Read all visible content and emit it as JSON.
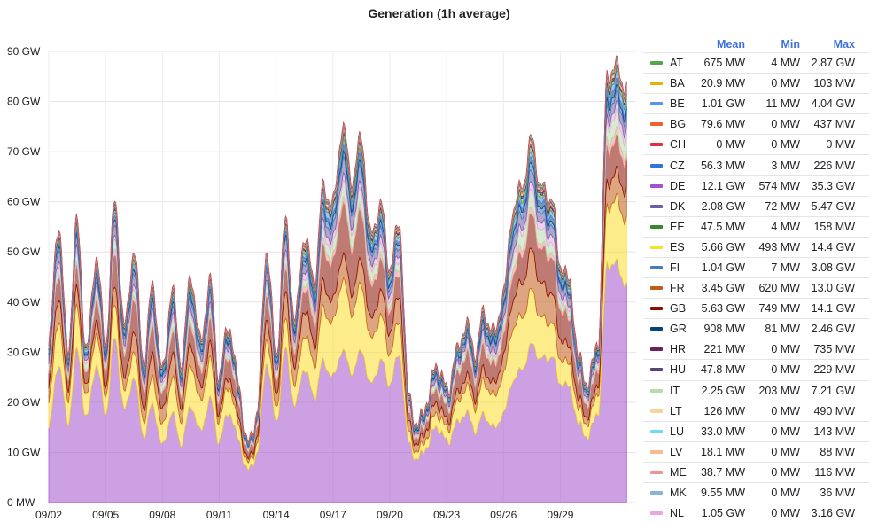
{
  "chart_data": {
    "type": "area",
    "title": "Generation (1h average)",
    "xlabel": "",
    "ylabel": "",
    "ylim": [
      0,
      90
    ],
    "y_unit": "GW",
    "yticks": [
      "0 MW",
      "10 GW",
      "20 GW",
      "30 GW",
      "40 GW",
      "50 GW",
      "60 GW",
      "70 GW",
      "80 GW",
      "90 GW"
    ],
    "xticks": [
      "09/02",
      "09/05",
      "09/08",
      "09/11",
      "09/14",
      "09/17",
      "09/20",
      "09/23",
      "09/26",
      "09/29"
    ],
    "grid": true,
    "stacked": true,
    "legend_placement": "right",
    "x_days": [
      0,
      0.5,
      1,
      1.5,
      2,
      2.5,
      3,
      3.5,
      4,
      4.5,
      5,
      5.5,
      6,
      6.5,
      7,
      7.5,
      8,
      8.5,
      9,
      9.5,
      10,
      10.5,
      11,
      11.5,
      12,
      12.5,
      13,
      13.5,
      14,
      14.5,
      15,
      15.5,
      16,
      16.5,
      17,
      17.5,
      18,
      18.5,
      19,
      19.5,
      20,
      20.5,
      21,
      21.5,
      22,
      22.5,
      23,
      23.5,
      24,
      24.5,
      25,
      25.5,
      26,
      26.5,
      27,
      27.5,
      28,
      28.5,
      29,
      29.5,
      30,
      30.5
    ],
    "total_gw": [
      30,
      52,
      28,
      50,
      27,
      45,
      30,
      57,
      34,
      51,
      30,
      47,
      29,
      48,
      32,
      50,
      34,
      45,
      25,
      34,
      22,
      10,
      16,
      46,
      27,
      53,
      36,
      55,
      47,
      68,
      65,
      82,
      70,
      78,
      56,
      62,
      48,
      55,
      20,
      14,
      19,
      25,
      20,
      27,
      34,
      30,
      39,
      36,
      46,
      66,
      72,
      81,
      68,
      64,
      48,
      42,
      26,
      22,
      30,
      78,
      79,
      76
    ],
    "legend_columns": [
      "Mean",
      "Min",
      "Max"
    ],
    "series": [
      {
        "name": "AT",
        "color": "#56a64b",
        "mean": "675 MW",
        "min": "4 MW",
        "max": "2.87 GW"
      },
      {
        "name": "BA",
        "color": "#e0b400",
        "mean": "20.9 MW",
        "min": "0 MW",
        "max": "103 MW"
      },
      {
        "name": "BE",
        "color": "#5794f2",
        "mean": "1.01 GW",
        "min": "11 MW",
        "max": "4.04 GW"
      },
      {
        "name": "BG",
        "color": "#f2612d",
        "mean": "79.6 MW",
        "min": "0 MW",
        "max": "437 MW"
      },
      {
        "name": "CH",
        "color": "#e02f44",
        "mean": "0 MW",
        "min": "0 MW",
        "max": "0 MW"
      },
      {
        "name": "CZ",
        "color": "#3274d9",
        "mean": "56.3 MW",
        "min": "3 MW",
        "max": "226 MW"
      },
      {
        "name": "DE",
        "color": "#a352cc",
        "mean": "12.1 GW",
        "min": "574 MW",
        "max": "35.3 GW"
      },
      {
        "name": "DK",
        "color": "#705da0",
        "mean": "2.08 GW",
        "min": "72 MW",
        "max": "5.47 GW"
      },
      {
        "name": "EE",
        "color": "#37872d",
        "mean": "47.5 MW",
        "min": "4 MW",
        "max": "158 MW"
      },
      {
        "name": "ES",
        "color": "#fade2a",
        "mean": "5.66 GW",
        "min": "493 MW",
        "max": "14.4 GW"
      },
      {
        "name": "FI",
        "color": "#447ebc",
        "mean": "1.04 GW",
        "min": "7 MW",
        "max": "3.08 GW"
      },
      {
        "name": "FR",
        "color": "#c15c17",
        "mean": "3.45 GW",
        "min": "620 MW",
        "max": "13.0 GW"
      },
      {
        "name": "GB",
        "color": "#890f02",
        "mean": "5.63 GW",
        "min": "749 MW",
        "max": "14.1 GW"
      },
      {
        "name": "GR",
        "color": "#0a437c",
        "mean": "908 MW",
        "min": "81 MW",
        "max": "2.46 GW"
      },
      {
        "name": "HR",
        "color": "#6d1f62",
        "mean": "221 MW",
        "min": "0 MW",
        "max": "735 MW"
      },
      {
        "name": "HU",
        "color": "#584477",
        "mean": "47.8 MW",
        "min": "0 MW",
        "max": "229 MW"
      },
      {
        "name": "IT",
        "color": "#b7dbab",
        "mean": "2.25 GW",
        "min": "203 MW",
        "max": "7.21 GW"
      },
      {
        "name": "LT",
        "color": "#f4d598",
        "mean": "126 MW",
        "min": "0 MW",
        "max": "490 MW"
      },
      {
        "name": "LU",
        "color": "#70dbed",
        "mean": "33.0 MW",
        "min": "0 MW",
        "max": "143 MW"
      },
      {
        "name": "LV",
        "color": "#f9ba8f",
        "mean": "18.1 MW",
        "min": "0 MW",
        "max": "88 MW"
      },
      {
        "name": "ME",
        "color": "#f29191",
        "mean": "38.7 MW",
        "min": "0 MW",
        "max": "116 MW"
      },
      {
        "name": "MK",
        "color": "#82b5d8",
        "mean": "9.55 MW",
        "min": "0 MW",
        "max": "36 MW"
      },
      {
        "name": "NL",
        "color": "#e5a8e2",
        "mean": "1.05 GW",
        "min": "0 MW",
        "max": "3.16 GW"
      }
    ]
  }
}
